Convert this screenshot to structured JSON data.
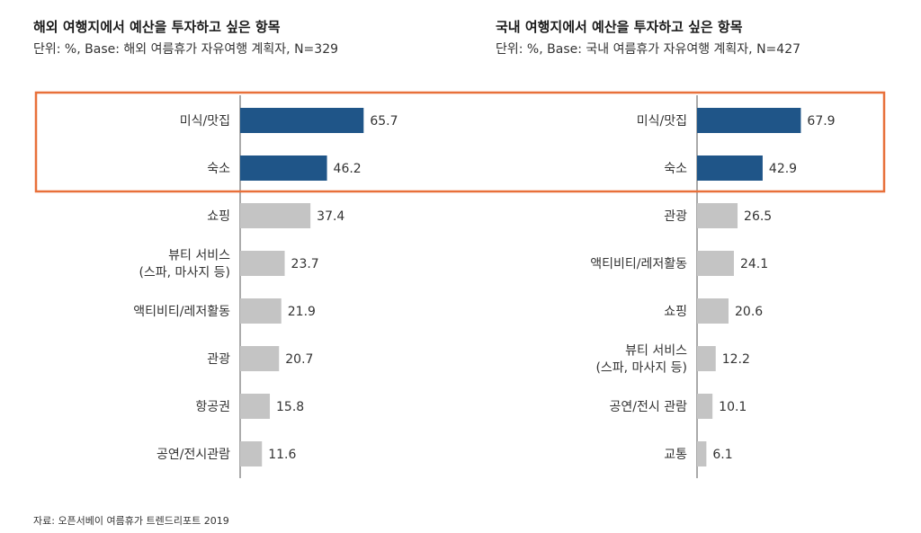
{
  "colors": {
    "highlight_bar": "#1f5588",
    "normal_bar": "#c4c4c4",
    "highlight_box": "#e8703a",
    "axis": "#555555"
  },
  "chart_data": [
    {
      "type": "bar",
      "orientation": "horizontal",
      "title": "해외 여행지에서 예산을 투자하고 싶은 항목",
      "subtitle": "단위: %, Base: 해외 여름휴가 자유여행 계획자, N=329",
      "categories": [
        [
          "미식/맛집"
        ],
        [
          "숙소"
        ],
        [
          "쇼핑"
        ],
        [
          "뷰티 서비스",
          "(스파, 마사지 등)"
        ],
        [
          "액티비티/레저활동"
        ],
        [
          "관광"
        ],
        [
          "항공권"
        ],
        [
          "공연/전시관람"
        ]
      ],
      "values": [
        65.7,
        46.2,
        37.4,
        23.7,
        21.9,
        20.7,
        15.8,
        11.6
      ],
      "value_labels": [
        "65.7",
        "46.2",
        "37.4",
        "23.7",
        "21.9",
        "20.7",
        "15.8",
        "11.6"
      ],
      "highlighted": [
        0,
        1
      ],
      "xlim": [
        0,
        100
      ]
    },
    {
      "type": "bar",
      "orientation": "horizontal",
      "title": "국내 여행지에서 예산을 투자하고 싶은 항목",
      "subtitle": "단위: %, Base: 국내 여름휴가 자유여행 계획자, N=427",
      "categories": [
        [
          "미식/맛집"
        ],
        [
          "숙소"
        ],
        [
          "관광"
        ],
        [
          "액티비티/레저활동"
        ],
        [
          "쇼핑"
        ],
        [
          "뷰티 서비스",
          "(스파, 마사지 등)"
        ],
        [
          "공연/전시 관람"
        ],
        [
          "교통"
        ]
      ],
      "values": [
        67.9,
        42.9,
        26.5,
        24.1,
        20.6,
        12.2,
        10.1,
        6.1
      ],
      "value_labels": [
        "67.9",
        "42.9",
        "26.5",
        "24.1",
        "20.6",
        "12.2",
        "10.1",
        "6.1"
      ],
      "highlighted": [
        0,
        1
      ],
      "xlim": [
        0,
        100
      ]
    }
  ],
  "source": "자료: 오픈서베이 여름휴가 트렌드리포트 2019"
}
